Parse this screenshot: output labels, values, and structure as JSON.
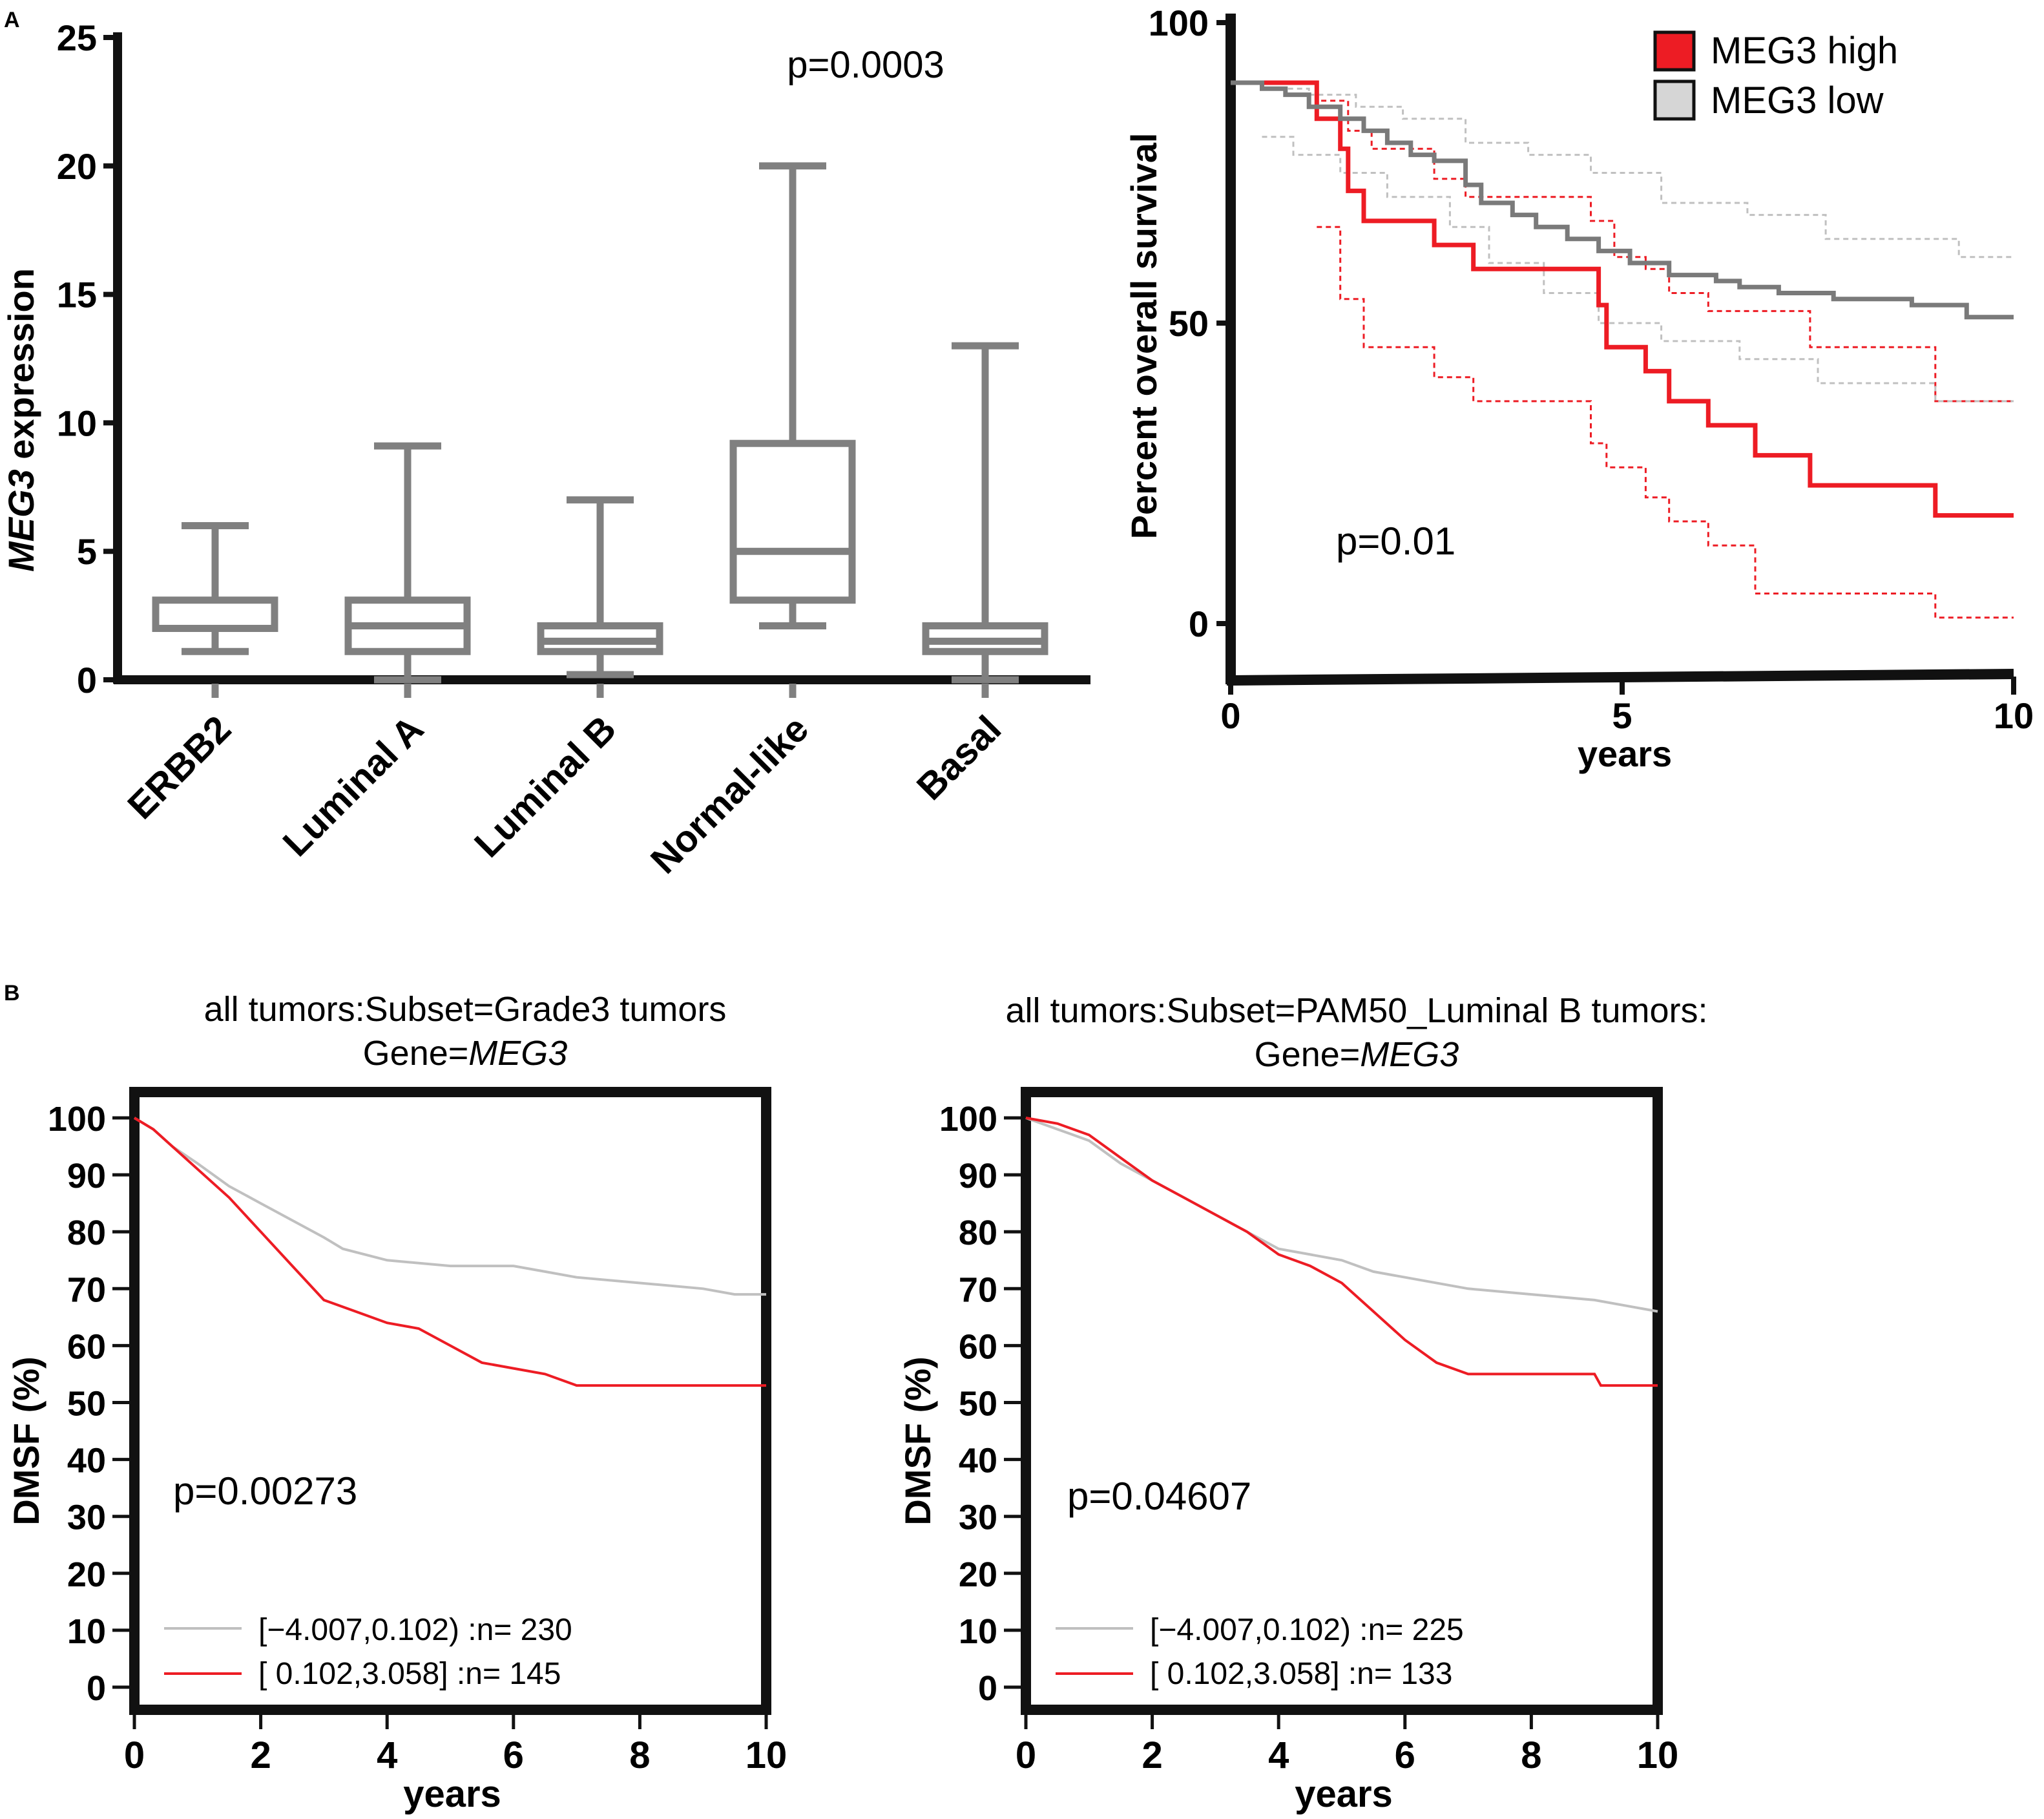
{
  "colors": {
    "high": "#ed1c24",
    "low_dark": "#7a7a7a",
    "low_light": "#c0c0c0",
    "box": "#808080",
    "axis": "#111111"
  },
  "chart_data": [
    {
      "panel": "A",
      "type": "box",
      "title": "",
      "pvalue": "p=0.0003",
      "ylabel_italic": "MEG3",
      "ylabel_rest": " expression",
      "ylim": [
        0,
        25
      ],
      "yticks": [
        0,
        5,
        10,
        15,
        20,
        25
      ],
      "categories": [
        "ERBB2",
        "Luminal A",
        "Luminal B",
        "Normal-like",
        "Basal"
      ],
      "boxes": [
        {
          "name": "ERBB2",
          "min": 1.1,
          "q1": 2.0,
          "median": 2.0,
          "q3": 3.1,
          "max": 6.0,
          "outlier": 0
        },
        {
          "name": "Luminal A",
          "min": 0.0,
          "q1": 1.1,
          "median": 2.1,
          "q3": 3.1,
          "max": 9.1,
          "outlier": 0
        },
        {
          "name": "Luminal B",
          "min": 0.2,
          "q1": 1.1,
          "median": 1.5,
          "q3": 2.1,
          "max": 7.0,
          "outlier": 0
        },
        {
          "name": "Normal-like",
          "min": 2.1,
          "q1": 3.1,
          "median": 5.0,
          "q3": 9.2,
          "max": 20.0,
          "outlier": 0
        },
        {
          "name": "Basal",
          "min": 0.0,
          "q1": 1.1,
          "median": 1.5,
          "q3": 2.1,
          "max": 13.0,
          "outlier": 0
        }
      ]
    },
    {
      "panel": "A-right",
      "type": "line",
      "title": "",
      "pvalue": "p=0.01",
      "xlabel": "years",
      "ylabel": "Percent overall survival",
      "xlim": [
        0,
        10
      ],
      "ylim": [
        -10,
        100
      ],
      "xticks": [
        0,
        5,
        10
      ],
      "yticks": [
        0,
        50,
        100
      ],
      "legend": [
        "MEG3 high",
        "MEG3 low"
      ],
      "series": [
        {
          "name": "MEG3 high",
          "style": "solid",
          "color_key": "high",
          "x": [
            0,
            1.1,
            1.1,
            1.4,
            1.4,
            1.5,
            1.5,
            1.7,
            1.7,
            2.6,
            2.6,
            3.1,
            3.1,
            4.7,
            4.7,
            4.8,
            4.8,
            5.3,
            5.3,
            5.6,
            5.6,
            6.1,
            6.1,
            6.7,
            6.7,
            7.4,
            7.4,
            9.0,
            9.0,
            10
          ],
          "y": [
            90,
            90,
            84,
            84,
            79,
            79,
            72,
            72,
            67,
            67,
            63,
            63,
            59,
            59,
            53,
            53,
            46,
            46,
            42,
            42,
            37,
            37,
            33,
            33,
            28,
            28,
            23,
            23,
            18,
            18
          ]
        },
        {
          "name": "MEG3 high CI upper",
          "style": "dashed",
          "color_key": "high",
          "x": [
            0,
            1.1,
            1.1,
            1.5,
            1.5,
            1.8,
            1.8,
            2.6,
            2.6,
            3.0,
            3.0,
            4.6,
            4.6,
            4.9,
            4.9,
            5.3,
            5.3,
            5.6,
            5.6,
            6.1,
            6.1,
            7.4,
            7.4,
            9.0,
            9.0,
            10
          ],
          "y": [
            90,
            90,
            87,
            87,
            82,
            82,
            79,
            79,
            74,
            74,
            71,
            71,
            67,
            67,
            61,
            61,
            59,
            59,
            55,
            55,
            52,
            52,
            46,
            46,
            37,
            37
          ]
        },
        {
          "name": "MEG3 high CI lower",
          "style": "dashed",
          "color_key": "high",
          "x": [
            1.1,
            1.4,
            1.4,
            1.7,
            1.7,
            2.6,
            2.6,
            3.1,
            3.1,
            4.6,
            4.6,
            4.8,
            4.8,
            5.3,
            5.3,
            5.6,
            5.6,
            6.1,
            6.1,
            6.7,
            6.7,
            7.4,
            7.4,
            9.0,
            9.0,
            10
          ],
          "y": [
            66,
            66,
            54,
            54,
            46,
            46,
            41,
            41,
            37,
            37,
            30,
            30,
            26,
            26,
            21,
            21,
            17,
            17,
            13,
            13,
            5,
            5,
            5,
            5,
            1,
            1
          ]
        },
        {
          "name": "MEG3 low",
          "style": "solid",
          "color_key": "low_dark",
          "x": [
            0,
            0.4,
            0.4,
            0.7,
            0.7,
            1.0,
            1.0,
            1.4,
            1.4,
            1.7,
            1.7,
            2.0,
            2.0,
            2.3,
            2.3,
            2.6,
            2.6,
            3.0,
            3.0,
            3.2,
            3.2,
            3.6,
            3.6,
            3.9,
            3.9,
            4.3,
            4.3,
            4.7,
            4.7,
            5.1,
            5.1,
            5.6,
            5.6,
            6.2,
            6.2,
            6.5,
            6.5,
            7.0,
            7.0,
            7.7,
            7.7,
            8.7,
            8.7,
            9.4,
            9.4,
            10
          ],
          "y": [
            90,
            90,
            89,
            89,
            88,
            88,
            86,
            86,
            84,
            84,
            82,
            82,
            80,
            80,
            78,
            78,
            77,
            77,
            73,
            73,
            70,
            70,
            68,
            68,
            66,
            66,
            64,
            64,
            62,
            62,
            60,
            60,
            58,
            58,
            57,
            57,
            56,
            56,
            55,
            55,
            54,
            54,
            53,
            53,
            51,
            51
          ]
        },
        {
          "name": "MEG3 low CI upper",
          "style": "dashed",
          "color_key": "low_light",
          "x": [
            0,
            0.5,
            0.5,
            1.0,
            1.0,
            1.6,
            1.6,
            2.2,
            2.2,
            3.0,
            3.0,
            3.8,
            3.8,
            4.6,
            4.6,
            5.5,
            5.5,
            6.6,
            6.6,
            7.6,
            7.6,
            9.3,
            9.3,
            10
          ],
          "y": [
            90,
            90,
            89,
            89,
            88,
            88,
            86,
            86,
            84,
            84,
            80,
            80,
            78,
            78,
            75,
            75,
            70,
            70,
            68,
            68,
            64,
            64,
            61,
            61
          ]
        },
        {
          "name": "MEG3 low CI lower",
          "style": "dashed",
          "color_key": "low_light",
          "x": [
            0.4,
            0.8,
            0.8,
            1.4,
            1.4,
            2.0,
            2.0,
            2.8,
            2.8,
            3.3,
            3.3,
            4.0,
            4.0,
            4.7,
            4.7,
            5.5,
            5.5,
            6.5,
            6.5,
            7.5,
            7.5,
            9.0,
            9.0,
            10
          ],
          "y": [
            81,
            81,
            78,
            78,
            75,
            75,
            71,
            71,
            66,
            66,
            60,
            60,
            55,
            55,
            50,
            50,
            47,
            47,
            44,
            44,
            40,
            40,
            37,
            37
          ]
        }
      ]
    },
    {
      "panel": "B",
      "type": "line",
      "title_line1": "all tumors:Subset=Grade3 tumors",
      "title_line2_prefix": "Gene=",
      "title_line2_gene": "MEG3",
      "pvalue": "p=0.00273",
      "xlabel": "years",
      "ylabel": "DMSF (%)",
      "xlim": [
        0,
        10
      ],
      "ylim": [
        0,
        100
      ],
      "xticks": [
        0,
        2,
        4,
        6,
        8,
        10
      ],
      "yticks": [
        0,
        10,
        20,
        30,
        40,
        50,
        60,
        70,
        80,
        90,
        100
      ],
      "legend": [
        "[−4.007,0.102) :n= 230",
        "[ 0.102,3.058] :n= 145"
      ],
      "series": [
        {
          "name": "[−4.007,0.102) :n= 230",
          "color_key": "low_light",
          "x": [
            0,
            0.3,
            0.6,
            1.0,
            1.5,
            2.0,
            2.5,
            3.0,
            3.3,
            4.0,
            5.0,
            6.0,
            6.5,
            7.0,
            8.0,
            9.0,
            9.5,
            10
          ],
          "y": [
            100,
            98,
            95,
            92,
            88,
            85,
            82,
            79,
            77,
            75,
            74,
            74,
            73,
            72,
            71,
            70,
            69,
            69
          ]
        },
        {
          "name": "[ 0.102,3.058] :n= 145",
          "color_key": "high",
          "x": [
            0,
            0.3,
            0.6,
            1.0,
            1.5,
            2.0,
            2.5,
            3.0,
            3.5,
            4.0,
            4.5,
            5.0,
            5.5,
            6.0,
            6.5,
            7.0,
            8.0,
            9.0,
            10
          ],
          "y": [
            100,
            98,
            95,
            91,
            86,
            80,
            74,
            68,
            66,
            64,
            63,
            60,
            57,
            56,
            55,
            53,
            53,
            53,
            53
          ]
        }
      ]
    },
    {
      "panel": "B-right",
      "type": "line",
      "title_line1": "all tumors:Subset=PAM50_Luminal B tumors:",
      "title_line2_prefix": "Gene=",
      "title_line2_gene": "MEG3",
      "pvalue": "p=0.04607",
      "xlabel": "years",
      "ylabel": "DMSF (%)",
      "xlim": [
        0,
        10
      ],
      "ylim": [
        0,
        100
      ],
      "xticks": [
        0,
        2,
        4,
        6,
        8,
        10
      ],
      "yticks": [
        0,
        10,
        20,
        30,
        40,
        50,
        60,
        70,
        80,
        90,
        100
      ],
      "legend": [
        "[−4.007,0.102) :n= 225",
        "[ 0.102,3.058] :n= 133"
      ],
      "series": [
        {
          "name": "[−4.007,0.102) :n= 225",
          "color_key": "low_light",
          "x": [
            0,
            0.5,
            1.0,
            1.5,
            2.0,
            2.5,
            3.0,
            3.5,
            4.0,
            4.5,
            5.0,
            5.5,
            6.0,
            7.0,
            8.0,
            9.0,
            9.5,
            10
          ],
          "y": [
            100,
            98,
            96,
            92,
            89,
            86,
            83,
            80,
            77,
            76,
            75,
            73,
            72,
            70,
            69,
            68,
            67,
            66
          ]
        },
        {
          "name": "[ 0.102,3.058] :n= 133",
          "color_key": "high",
          "x": [
            0,
            0.5,
            1.0,
            1.5,
            2.0,
            2.5,
            3.0,
            3.5,
            4.0,
            4.5,
            5.0,
            5.5,
            6.0,
            6.5,
            7.0,
            8.0,
            9.0,
            9.1,
            10
          ],
          "y": [
            100,
            99,
            97,
            93,
            89,
            86,
            83,
            80,
            76,
            74,
            71,
            66,
            61,
            57,
            55,
            55,
            55,
            53,
            53
          ]
        }
      ]
    }
  ],
  "panel_labels": [
    "A",
    "B"
  ]
}
